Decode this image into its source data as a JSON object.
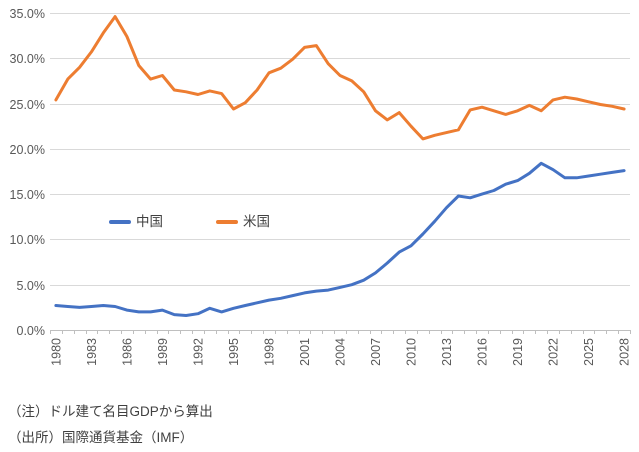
{
  "chart_data": {
    "type": "line",
    "title": "",
    "xlabel": "",
    "ylabel": "",
    "x": [
      1980,
      1981,
      1982,
      1983,
      1984,
      1985,
      1986,
      1987,
      1988,
      1989,
      1990,
      1991,
      1992,
      1993,
      1994,
      1995,
      1996,
      1997,
      1998,
      1999,
      2000,
      2001,
      2002,
      2003,
      2004,
      2005,
      2006,
      2007,
      2008,
      2009,
      2010,
      2011,
      2012,
      2013,
      2014,
      2015,
      2016,
      2017,
      2018,
      2019,
      2020,
      2021,
      2022,
      2023,
      2024,
      2025,
      2026,
      2027,
      2028
    ],
    "series": [
      {
        "name": "中国",
        "color": "#4472C4",
        "values": [
          2.7,
          2.6,
          2.5,
          2.6,
          2.7,
          2.6,
          2.2,
          2.0,
          2.0,
          2.2,
          1.7,
          1.6,
          1.8,
          2.4,
          2.0,
          2.4,
          2.7,
          3.0,
          3.3,
          3.5,
          3.8,
          4.1,
          4.3,
          4.4,
          4.7,
          5.0,
          5.5,
          6.3,
          7.4,
          8.6,
          9.3,
          10.6,
          12.0,
          13.5,
          14.8,
          14.6,
          15.0,
          15.4,
          16.1,
          16.5,
          17.3,
          18.4,
          17.7,
          16.8,
          16.8,
          17.0,
          17.2,
          17.4,
          17.6
        ]
      },
      {
        "name": "米国",
        "color": "#ED7D31",
        "values": [
          25.4,
          27.7,
          29.0,
          30.7,
          32.8,
          34.6,
          32.4,
          29.2,
          27.7,
          28.1,
          26.5,
          26.3,
          26.0,
          26.4,
          26.1,
          24.4,
          25.1,
          26.5,
          28.4,
          28.9,
          29.9,
          31.2,
          31.4,
          29.4,
          28.1,
          27.5,
          26.3,
          24.2,
          23.2,
          24.0,
          22.5,
          21.1,
          21.5,
          21.8,
          22.1,
          24.3,
          24.6,
          24.2,
          23.8,
          24.2,
          24.8,
          24.2,
          25.4,
          25.7,
          25.5,
          25.2,
          24.9,
          24.7,
          24.4
        ]
      }
    ],
    "ylim": [
      0,
      35
    ],
    "y_tick_step": 5,
    "y_tick_labels": [
      "0.0%",
      "5.0%",
      "10.0%",
      "15.0%",
      "20.0%",
      "25.0%",
      "30.0%",
      "35.0%"
    ],
    "x_tick_labels": [
      "1980",
      "1983",
      "1986",
      "1989",
      "1992",
      "1995",
      "1998",
      "2001",
      "2004",
      "2007",
      "2010",
      "2013",
      "2016",
      "2019",
      "2022",
      "2025",
      "2028"
    ],
    "x_label_interval": 3,
    "grid": true,
    "legend_position": "inside-left-middle",
    "gridline_color": "#D9D9D9",
    "axis_color": "#BFBFBF",
    "tick_label_color": "#595959"
  },
  "notes": [
    "（注）ドル建て名目GDPから算出",
    "（出所）国際通貨基金（IMF）"
  ]
}
